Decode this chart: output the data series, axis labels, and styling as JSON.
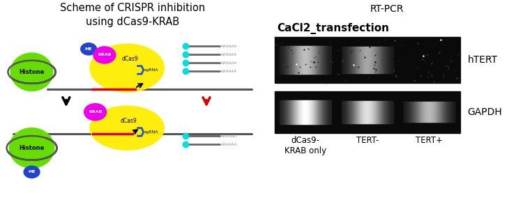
{
  "title_left": "Scheme of CRISPR inhibition\nusing dCas9-KRAB",
  "title_right": "RT-PCR",
  "subtitle_right": "CaCl2_transfection",
  "label_htert": "hTERT",
  "label_gapdh": "GAPDH",
  "x_labels": [
    "dCas9-\nKRAB only",
    "TERT-",
    "TERT+"
  ],
  "bg_color": "#ffffff",
  "histone_color": "#66dd00",
  "yellow_color": "#ffee00",
  "krab_color": "#ee00ee",
  "me_color": "#2244cc",
  "dna_color": "#555555",
  "red_color": "#dd0000",
  "blue_color": "#2255cc",
  "cyan_color": "#00dddd",
  "mrna_line_color": "#666666",
  "mrna_text_color": "#888888"
}
